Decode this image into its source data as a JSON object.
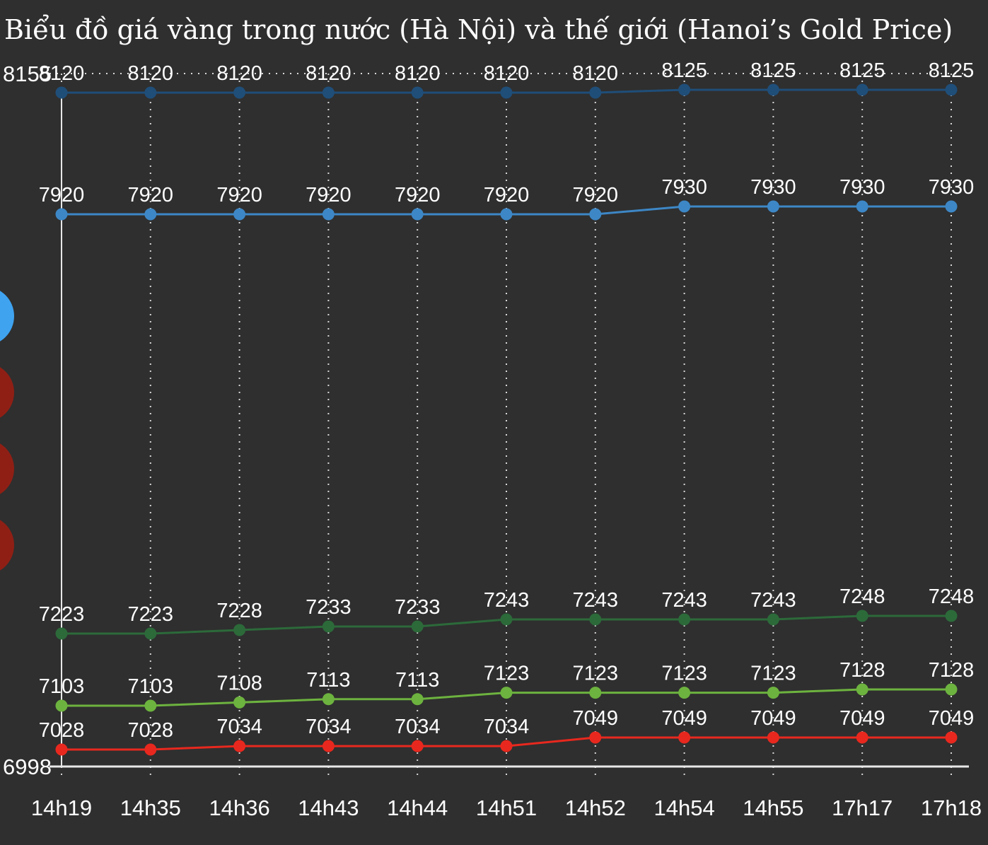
{
  "chart_data": {
    "type": "line",
    "title": "Biểu đồ giá vàng trong nước (Hà Nội) và thế giới (Hanoi’s Gold Price)",
    "categories": [
      "14h19",
      "14h35",
      "14h36",
      "14h43",
      "14h44",
      "14h51",
      "14h52",
      "14h54",
      "14h55",
      "17h17",
      "17h18"
    ],
    "ylim": [
      6998,
      8155
    ],
    "ytick_labels": [
      "8155",
      "6998"
    ],
    "grid": "vertical dotted",
    "series": [
      {
        "color": "#1f4e79",
        "values": [
          8120,
          8120,
          8120,
          8120,
          8120,
          8120,
          8120,
          8125,
          8125,
          8125,
          8125
        ]
      },
      {
        "color": "#3d87c6",
        "values": [
          7920,
          7920,
          7920,
          7920,
          7920,
          7920,
          7920,
          7930,
          7930,
          7930,
          7930
        ]
      },
      {
        "color": "#2c6a3a",
        "values": [
          7223,
          7223,
          7228,
          7233,
          7233,
          7243,
          7243,
          7243,
          7243,
          7248,
          7248
        ]
      },
      {
        "color": "#6db33f",
        "values": [
          7103,
          7103,
          7108,
          7113,
          7113,
          7123,
          7123,
          7123,
          7123,
          7128,
          7128
        ]
      },
      {
        "color": "#e8281e",
        "values": [
          7028,
          7028,
          7034,
          7034,
          7034,
          7034,
          7049,
          7049,
          7049,
          7049,
          7049
        ]
      }
    ],
    "legend_markers": [
      "#3fa3f0",
      "#8f1f15",
      "#8f1f15",
      "#8f1f15"
    ]
  }
}
